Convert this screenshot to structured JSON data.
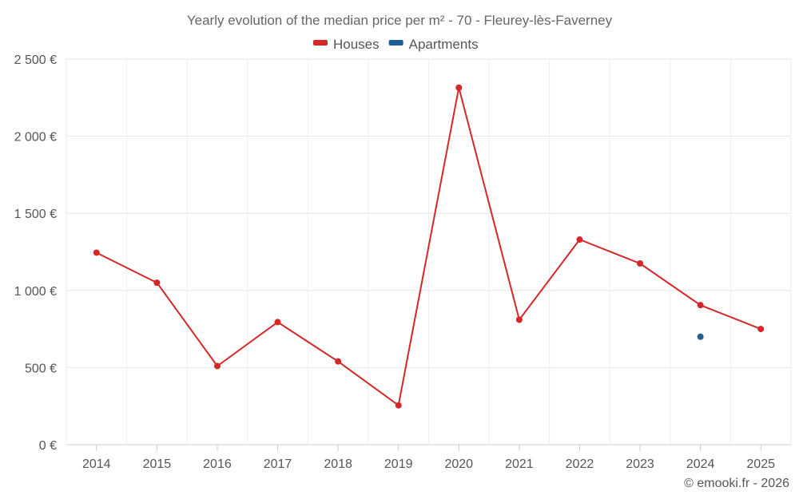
{
  "chart_data": {
    "type": "line",
    "title": "Yearly evolution of the median price per m² - 70 - Fleurey-lès-Faverney",
    "categories": [
      "2014",
      "2015",
      "2016",
      "2017",
      "2018",
      "2019",
      "2020",
      "2021",
      "2022",
      "2023",
      "2024",
      "2025"
    ],
    "series": [
      {
        "name": "Houses",
        "color": "#d62728",
        "values": [
          1245,
          1050,
          510,
          795,
          540,
          255,
          2315,
          810,
          1330,
          1175,
          905,
          750
        ]
      },
      {
        "name": "Apartments",
        "color": "#1f5f99",
        "values": [
          null,
          null,
          null,
          null,
          null,
          null,
          null,
          null,
          null,
          null,
          700,
          null
        ]
      }
    ],
    "ylim": [
      0,
      2500
    ],
    "yticks": [
      0,
      500,
      1000,
      1500,
      2000,
      2500
    ],
    "ytick_labels": [
      "0 €",
      "500 €",
      "1 000 €",
      "1 500 €",
      "2 000 €",
      "2 500 €"
    ],
    "xlabel": "",
    "ylabel": "",
    "grid": true,
    "legend_position": "top-center"
  },
  "credit": "© emooki.fr - 2026"
}
